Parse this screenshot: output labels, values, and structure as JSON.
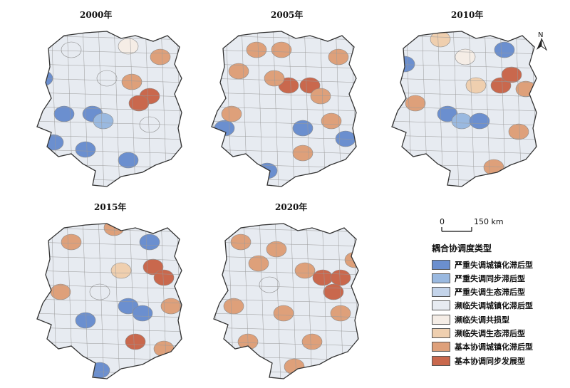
{
  "maps": [
    {
      "year": "2000年"
    },
    {
      "year": "2005年"
    },
    {
      "year": "2010年"
    },
    {
      "year": "2015年"
    },
    {
      "year": "2020年"
    }
  ],
  "north_arrow": {
    "label": "N"
  },
  "scale_bar": {
    "start": "0",
    "end": "150 km"
  },
  "legend": {
    "title": "耦合协调度类型",
    "items": [
      {
        "label": "严重失调城镇化滞后型",
        "color": "#6b8fcf"
      },
      {
        "label": "严重失调同步滞后型",
        "color": "#9ab9e0"
      },
      {
        "label": "严重失调生态滞后型",
        "color": "#c4d4ea"
      },
      {
        "label": "濒临失调城镇化滞后型",
        "color": "#e7ebf1"
      },
      {
        "label": "濒临失调共损型",
        "color": "#f5ede6"
      },
      {
        "label": "濒临失调生态滞后型",
        "color": "#efcfaf"
      },
      {
        "label": "基本协调城镇化滞后型",
        "color": "#dea07a"
      },
      {
        "label": "基本协调同步发展型",
        "color": "#c9684d"
      }
    ]
  }
}
